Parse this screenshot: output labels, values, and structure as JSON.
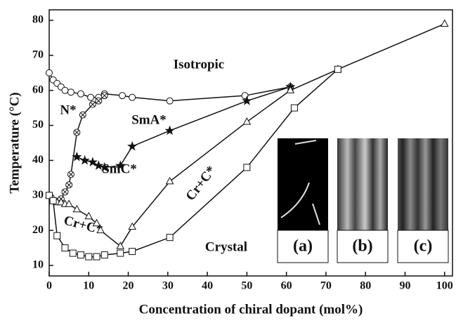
{
  "chart_data": {
    "type": "line",
    "x_label": "Concentration of chiral dopant (mol%)",
    "y_label": "Temperature (°C)",
    "xlim": [
      0,
      102
    ],
    "ylim": [
      7,
      83
    ],
    "xticks": [
      0,
      10,
      20,
      30,
      40,
      50,
      60,
      70,
      80,
      90,
      100
    ],
    "yticks": [
      10,
      20,
      30,
      40,
      50,
      60,
      70,
      80
    ],
    "color": "#111111",
    "series": [
      {
        "marker": "circle",
        "x": [
          0,
          1,
          2,
          3,
          4,
          5.5,
          8,
          10.5,
          12.5,
          14,
          18.5,
          21,
          30.5,
          49.5,
          61
        ],
        "values": [
          65,
          63,
          62,
          61,
          60,
          59.5,
          59,
          58,
          58,
          59,
          58.5,
          58,
          57,
          58.5,
          61
        ]
      },
      {
        "marker": "crossed-circle",
        "x": [
          3,
          4,
          5,
          5.5,
          7,
          8.5,
          11,
          12.5,
          14
        ],
        "values": [
          29,
          31,
          33,
          36,
          48,
          53,
          56,
          57,
          58.5
        ]
      },
      {
        "marker": "star",
        "x": [
          7,
          9,
          11,
          12.5,
          14,
          18,
          21,
          30.5,
          50,
          61
        ],
        "values": [
          41,
          40,
          39.5,
          38.5,
          38,
          38.5,
          44,
          48.5,
          57,
          61
        ]
      },
      {
        "marker": "triangle",
        "x": [
          0,
          1,
          2,
          3,
          4,
          5,
          7,
          10,
          12,
          13,
          18,
          21,
          30.5,
          50,
          61,
          73,
          100
        ],
        "values": [
          30,
          29,
          28,
          28,
          27.5,
          27.5,
          26,
          24,
          22,
          20,
          15.5,
          21,
          34,
          51,
          60,
          66,
          79
        ]
      },
      {
        "marker": "square",
        "x": [
          0,
          1,
          2,
          4,
          6,
          8,
          10,
          12,
          14,
          18,
          21,
          30.5,
          50,
          62,
          73
        ],
        "values": [
          30,
          28.5,
          18.5,
          15,
          13.5,
          13,
          12.5,
          12.5,
          13,
          13.5,
          14,
          18,
          38,
          55,
          66
        ]
      }
    ],
    "annotations": [
      "Isotropic",
      "SmA*",
      "N*",
      "SmC*",
      "Cr+C*",
      "Cr+C*",
      "Crystal"
    ]
  },
  "insets": {
    "labels": [
      "(a)",
      "(b)",
      "(c)"
    ]
  }
}
